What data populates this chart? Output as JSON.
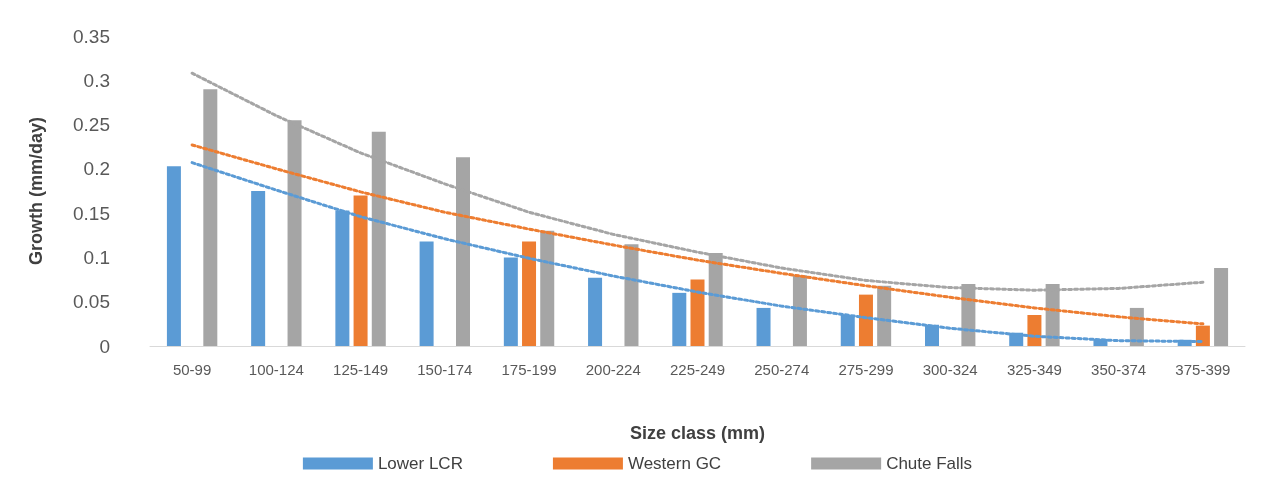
{
  "chart_data": {
    "type": "bar",
    "xlabel": "Size class (mm)",
    "ylabel": "Growth (mm/day)",
    "categories": [
      "50-99",
      "100-124",
      "125-149",
      "150-174",
      "175-199",
      "200-224",
      "225-249",
      "250-274",
      "275-299",
      "300-324",
      "325-349",
      "350-374",
      "375-399"
    ],
    "series": [
      {
        "name": "Lower LCR",
        "color": "#5b9bd5",
        "values": [
          0.203,
          0.175,
          0.153,
          0.118,
          0.1,
          0.077,
          0.06,
          0.043,
          0.035,
          0.024,
          0.015,
          0.008,
          0.007
        ]
      },
      {
        "name": "Western GC",
        "color": "#ed7d31",
        "values": [
          null,
          null,
          0.17,
          null,
          0.118,
          null,
          0.075,
          null,
          0.058,
          null,
          0.035,
          null,
          0.023
        ]
      },
      {
        "name": "Chute Falls",
        "color": "#a5a5a5",
        "values": [
          0.29,
          0.255,
          0.242,
          0.213,
          0.13,
          0.115,
          0.105,
          0.08,
          0.068,
          0.07,
          0.07,
          0.043,
          0.088
        ]
      },
      {
        "type": "line",
        "color": "#5b9bd5",
        "line_style": "dotted",
        "marker": "none",
        "values": [
          0.207,
          0.176,
          0.146,
          0.121,
          0.099,
          0.079,
          0.061,
          0.045,
          0.032,
          0.02,
          0.011,
          0.006,
          0.005
        ]
      },
      {
        "type": "line",
        "color": "#ed7d31",
        "line_style": "dotted",
        "marker": "none",
        "values": [
          0.227,
          0.2,
          0.174,
          0.151,
          0.132,
          0.114,
          0.097,
          0.082,
          0.068,
          0.055,
          0.043,
          0.033,
          0.025
        ]
      },
      {
        "type": "line",
        "color": "#a5a5a5",
        "line_style": "dotted",
        "marker": "none",
        "values": [
          0.308,
          0.26,
          0.218,
          0.183,
          0.151,
          0.126,
          0.106,
          0.088,
          0.074,
          0.066,
          0.063,
          0.065,
          0.072
        ]
      }
    ],
    "ylim": [
      0,
      0.35
    ],
    "yticks": [
      0,
      0.05,
      0.1,
      0.15,
      0.2,
      0.25,
      0.3,
      0.35
    ],
    "grid": false,
    "legend": "bottom"
  }
}
